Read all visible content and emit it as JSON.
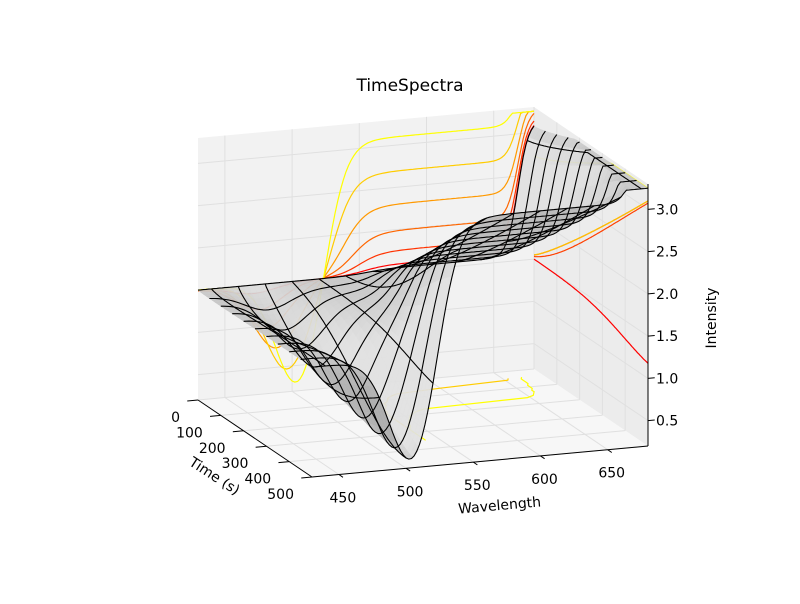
{
  "chart_data": {
    "type": "surface3d",
    "title": "TimeSpectra",
    "xlabel": "Wavelength",
    "ylabel": "Time (s)",
    "zlabel": "Intensity",
    "xlim": [
      430,
      680
    ],
    "ylim": [
      0,
      500
    ],
    "zlim": [
      0.2,
      3.3
    ],
    "x_ticks": [
      "450",
      "500",
      "550",
      "600",
      "650"
    ],
    "y_ticks": [
      "0",
      "100",
      "200",
      "300",
      "400",
      "500"
    ],
    "z_ticks": [
      "0.5",
      "1.0",
      "1.5",
      "2.0",
      "2.5",
      "3.0"
    ],
    "grid": true,
    "wireframe_x": [
      440,
      460,
      480,
      500,
      520,
      540,
      560,
      580,
      600,
      620,
      640,
      660,
      675
    ],
    "wireframe_y": [
      0,
      50,
      100,
      150,
      200,
      250,
      300,
      350,
      400,
      450,
      500
    ],
    "surface_model": {
      "baseline": 1.5,
      "dip_center_start": 470,
      "dip_center_end": 505,
      "dip_depth_start": 0.0,
      "dip_depth_end": 1.3,
      "plateau_start_wavelength": 555,
      "plateau_height_start": 0.05,
      "plateau_height_end": 1.6,
      "far_edge_height": 3.1
    },
    "contour_colormap": "autumn",
    "contour_levels": [
      0.5,
      0.8,
      1.1,
      1.4,
      1.7,
      2.0,
      2.3,
      2.6,
      2.9
    ]
  }
}
